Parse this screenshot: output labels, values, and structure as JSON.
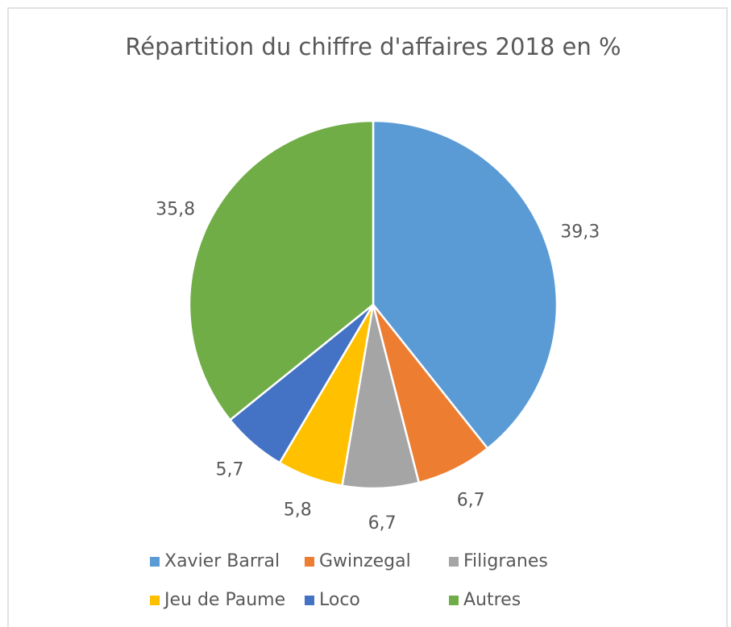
{
  "chart_data": {
    "type": "pie",
    "title": "Répartition du chiffre d'affaires 2018 en %",
    "categories": [
      "Xavier Barral",
      "Gwinzegal",
      "Filigranes",
      "Jeu de Paume",
      "Loco",
      "Autres"
    ],
    "values": [
      39.3,
      6.7,
      6.7,
      5.8,
      5.7,
      35.8
    ],
    "value_labels": [
      "39,3",
      "6,7",
      "6,7",
      "5,8",
      "5,7",
      "35,8"
    ],
    "colors": [
      "#5b9bd5",
      "#ed7d31",
      "#a5a5a5",
      "#ffc000",
      "#4472c4",
      "#70ad47"
    ],
    "legend": "bottom"
  }
}
